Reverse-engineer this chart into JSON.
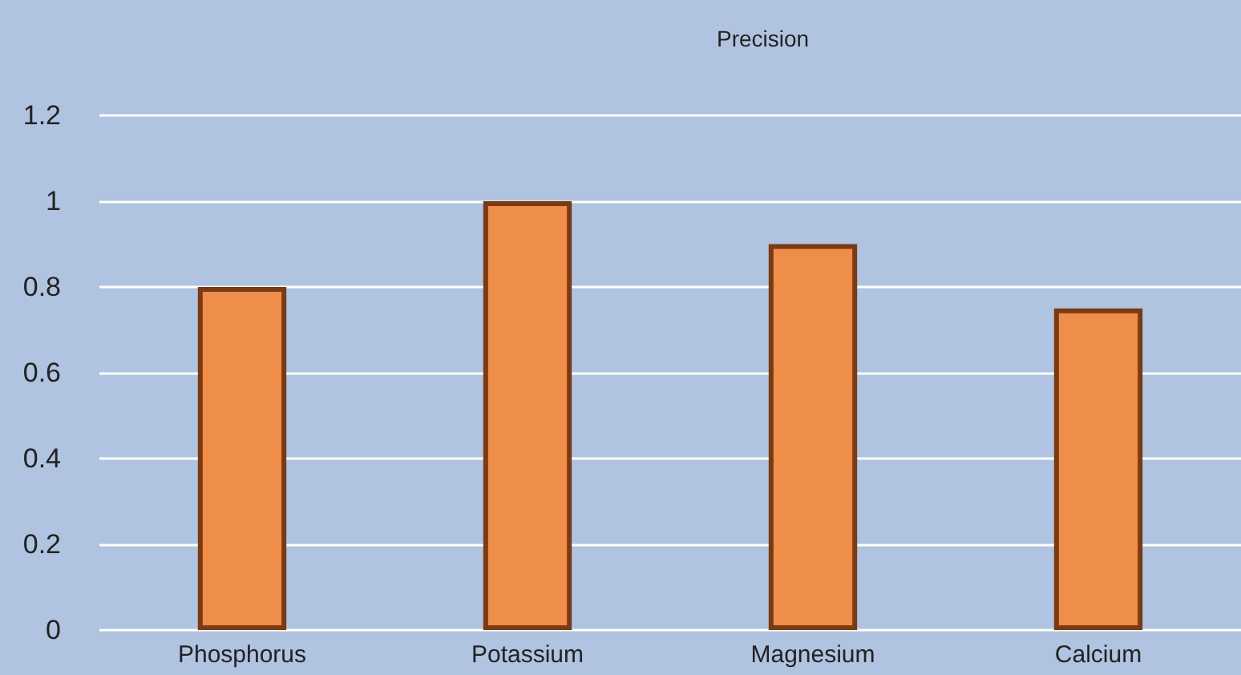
{
  "chart_data": {
    "type": "bar",
    "title": "Precision",
    "categories": [
      "Phosphorus",
      "Potassium",
      "Magnesium",
      "Calcium"
    ],
    "values": [
      0.8,
      1,
      0.9,
      0.75
    ],
    "color": "#ef8d4b",
    "ylim": [
      0,
      1.2
    ],
    "yticks": [
      0,
      0.2,
      0.4,
      0.6,
      0.8,
      1,
      1.2
    ],
    "grid": "y"
  }
}
